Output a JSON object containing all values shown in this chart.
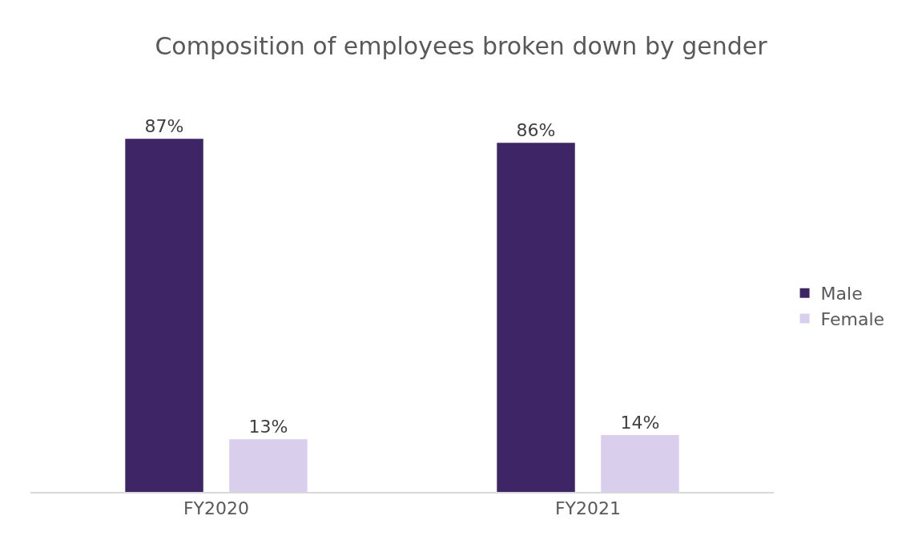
{
  "chart_data": {
    "type": "bar",
    "title": "Composition of employees broken down by gender",
    "categories": [
      "FY2020",
      "FY2021"
    ],
    "series": [
      {
        "name": "Male",
        "color": "#3d2566",
        "values": [
          87,
          86
        ],
        "value_labels": [
          "87%",
          "86%"
        ]
      },
      {
        "name": "Female",
        "color": "#d9cfed",
        "values": [
          13,
          14
        ],
        "value_labels": [
          "13%",
          "14%"
        ]
      }
    ],
    "legend": "right"
  }
}
